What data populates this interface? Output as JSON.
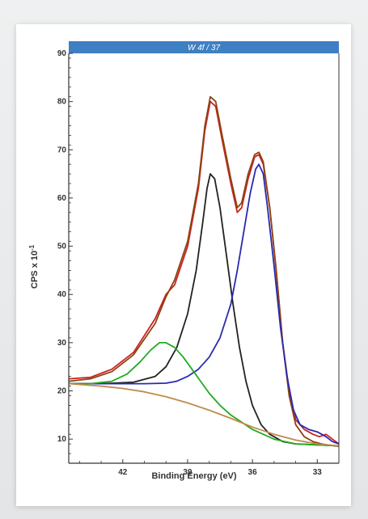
{
  "chart_data": {
    "type": "line",
    "title": "W 4f / 37",
    "xlabel": "Binding Energy (eV)",
    "ylabel": "CPS x 10",
    "ylabel_exp": "-1",
    "xlim": [
      44.5,
      32.0
    ],
    "ylim": [
      5,
      90
    ],
    "x_axis_reversed": true,
    "grid": false,
    "x_ticks": [
      42,
      39,
      36,
      33
    ],
    "y_ticks": [
      10,
      20,
      30,
      40,
      50,
      60,
      70,
      80,
      90
    ],
    "series": [
      {
        "color": "#cc2222",
        "role": "measured envelope",
        "points": [
          [
            44.5,
            22.5
          ],
          [
            43.5,
            22.8
          ],
          [
            42.5,
            24.5
          ],
          [
            41.5,
            28
          ],
          [
            40.5,
            35
          ],
          [
            40.0,
            40
          ],
          [
            39.6,
            42
          ],
          [
            39.0,
            50
          ],
          [
            38.5,
            62
          ],
          [
            38.2,
            74
          ],
          [
            37.95,
            80
          ],
          [
            37.7,
            79
          ],
          [
            37.4,
            72
          ],
          [
            37.0,
            63
          ],
          [
            36.7,
            57
          ],
          [
            36.5,
            58
          ],
          [
            36.2,
            64
          ],
          [
            35.9,
            68.5
          ],
          [
            35.7,
            69
          ],
          [
            35.5,
            67
          ],
          [
            35.2,
            58
          ],
          [
            34.9,
            45
          ],
          [
            34.6,
            30
          ],
          [
            34.3,
            20
          ],
          [
            34.0,
            14
          ],
          [
            33.6,
            12
          ],
          [
            33.2,
            11
          ],
          [
            32.9,
            10.5
          ],
          [
            32.6,
            11
          ],
          [
            32.3,
            10
          ],
          [
            32.0,
            9
          ]
        ]
      },
      {
        "color": "#8b4513",
        "role": "fit envelope",
        "points": [
          [
            44.5,
            22
          ],
          [
            43.5,
            22.5
          ],
          [
            42.5,
            24
          ],
          [
            41.5,
            27.5
          ],
          [
            40.5,
            34
          ],
          [
            40.0,
            39.5
          ],
          [
            39.6,
            43
          ],
          [
            39.0,
            51
          ],
          [
            38.5,
            63
          ],
          [
            38.2,
            75
          ],
          [
            37.95,
            81
          ],
          [
            37.7,
            80
          ],
          [
            37.4,
            73
          ],
          [
            37.0,
            64
          ],
          [
            36.7,
            58
          ],
          [
            36.5,
            59
          ],
          [
            36.2,
            65
          ],
          [
            35.9,
            69
          ],
          [
            35.7,
            69.5
          ],
          [
            35.5,
            67.5
          ],
          [
            35.2,
            58
          ],
          [
            34.9,
            45
          ],
          [
            34.6,
            30
          ],
          [
            34.3,
            19
          ],
          [
            34.0,
            13
          ],
          [
            33.6,
            10.5
          ],
          [
            33.2,
            9.5
          ],
          [
            32.8,
            9
          ],
          [
            32.4,
            8.7
          ],
          [
            32.0,
            8.5
          ]
        ]
      },
      {
        "color": "#222222",
        "role": "component",
        "points": [
          [
            44.5,
            21.5
          ],
          [
            43.0,
            21.5
          ],
          [
            41.5,
            21.8
          ],
          [
            40.5,
            23
          ],
          [
            40.0,
            25
          ],
          [
            39.5,
            29
          ],
          [
            39.0,
            36
          ],
          [
            38.6,
            45
          ],
          [
            38.3,
            55
          ],
          [
            38.1,
            62
          ],
          [
            37.95,
            65
          ],
          [
            37.75,
            64
          ],
          [
            37.5,
            58
          ],
          [
            37.2,
            48
          ],
          [
            36.9,
            38
          ],
          [
            36.6,
            29
          ],
          [
            36.3,
            22
          ],
          [
            36.0,
            17
          ],
          [
            35.6,
            13
          ],
          [
            35.2,
            11
          ],
          [
            34.6,
            9.5
          ],
          [
            34.0,
            9
          ],
          [
            33.0,
            8.8
          ],
          [
            32.0,
            8.6
          ]
        ]
      },
      {
        "color": "#2a2ab0",
        "role": "component",
        "points": [
          [
            44.5,
            21.5
          ],
          [
            43.0,
            21.5
          ],
          [
            42.0,
            21.5
          ],
          [
            41.0,
            21.5
          ],
          [
            40.0,
            21.6
          ],
          [
            39.5,
            22
          ],
          [
            39.0,
            23
          ],
          [
            38.5,
            24.5
          ],
          [
            38.0,
            27
          ],
          [
            37.5,
            31
          ],
          [
            37.0,
            38
          ],
          [
            36.7,
            45
          ],
          [
            36.4,
            53
          ],
          [
            36.1,
            61
          ],
          [
            35.85,
            66
          ],
          [
            35.7,
            67
          ],
          [
            35.5,
            65
          ],
          [
            35.3,
            58
          ],
          [
            35.0,
            46
          ],
          [
            34.7,
            33
          ],
          [
            34.4,
            23
          ],
          [
            34.1,
            16
          ],
          [
            33.8,
            13
          ],
          [
            33.4,
            12
          ],
          [
            33.0,
            11.5
          ],
          [
            32.6,
            10.5
          ],
          [
            32.3,
            9.5
          ],
          [
            32.0,
            9
          ]
        ]
      },
      {
        "color": "#22aa22",
        "role": "component",
        "points": [
          [
            44.5,
            21.5
          ],
          [
            43.5,
            21.5
          ],
          [
            42.5,
            22
          ],
          [
            41.8,
            23.5
          ],
          [
            41.2,
            26
          ],
          [
            40.7,
            28.5
          ],
          [
            40.3,
            30
          ],
          [
            40.0,
            30
          ],
          [
            39.6,
            29
          ],
          [
            39.2,
            27
          ],
          [
            38.8,
            24.5
          ],
          [
            38.4,
            22
          ],
          [
            38.0,
            19.5
          ],
          [
            37.5,
            17
          ],
          [
            37.0,
            15
          ],
          [
            36.5,
            13.5
          ],
          [
            36.0,
            12
          ],
          [
            35.5,
            11
          ],
          [
            35.0,
            10
          ],
          [
            34.5,
            9.5
          ],
          [
            34.0,
            9
          ],
          [
            33.0,
            8.8
          ],
          [
            32.0,
            8.6
          ]
        ]
      },
      {
        "color": "#c08a4a",
        "role": "background",
        "points": [
          [
            44.5,
            21.5
          ],
          [
            43.0,
            21
          ],
          [
            42.0,
            20.5
          ],
          [
            41.0,
            19.8
          ],
          [
            40.0,
            18.8
          ],
          [
            39.0,
            17.5
          ],
          [
            38.0,
            16
          ],
          [
            37.0,
            14.3
          ],
          [
            36.0,
            12.5
          ],
          [
            35.0,
            11
          ],
          [
            34.0,
            9.8
          ],
          [
            33.0,
            9
          ],
          [
            32.0,
            8.6
          ]
        ]
      }
    ]
  }
}
